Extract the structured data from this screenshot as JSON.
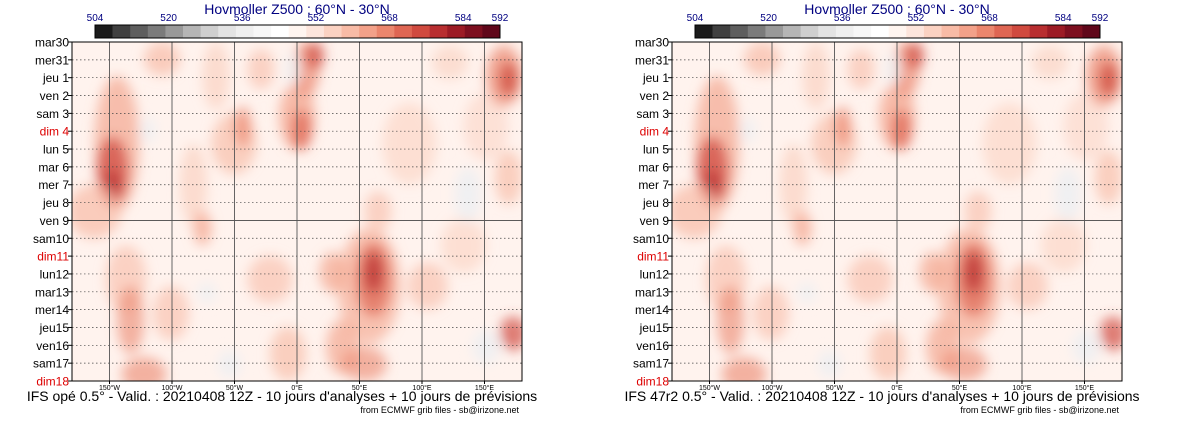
{
  "chart_data": [
    {
      "type": "heatmap",
      "title": "Hovmoller Z500 : 60°N - 30°N",
      "colorbar": {
        "tick_labels": [
          "504",
          "520",
          "536",
          "552",
          "568",
          "584",
          "592"
        ],
        "tick_values": [
          504,
          520,
          536,
          552,
          568,
          584,
          592
        ],
        "range": [
          504,
          592
        ],
        "colors": [
          "#1b1b1b",
          "#404040",
          "#5e5e5e",
          "#7b7b7b",
          "#999999",
          "#b5b5b5",
          "#cfcfcf",
          "#e3e3e3",
          "#efefef",
          "#f7f7f7",
          "#ffffff",
          "#fff5f0",
          "#fde5dc",
          "#fbd2c2",
          "#f8bba6",
          "#f3a189",
          "#eb866d",
          "#df6653",
          "#d04a3f",
          "#b82e30",
          "#9c1b25",
          "#7d0f1f",
          "#60071a"
        ]
      },
      "y_labels": [
        {
          "text": "mar30",
          "weekend": false
        },
        {
          "text": "mer31",
          "weekend": false
        },
        {
          "text": "jeu 1",
          "weekend": false
        },
        {
          "text": "ven 2",
          "weekend": false
        },
        {
          "text": "sam 3",
          "weekend": false
        },
        {
          "text": "dim 4",
          "weekend": true
        },
        {
          "text": "lun 5",
          "weekend": false
        },
        {
          "text": "mar 6",
          "weekend": false
        },
        {
          "text": "mer 7",
          "weekend": false
        },
        {
          "text": "jeu 8",
          "weekend": false
        },
        {
          "text": "ven 9",
          "weekend": false
        },
        {
          "text": "sam10",
          "weekend": false
        },
        {
          "text": "dim11",
          "weekend": true
        },
        {
          "text": "lun12",
          "weekend": false
        },
        {
          "text": "mar13",
          "weekend": false
        },
        {
          "text": "mer14",
          "weekend": false
        },
        {
          "text": "jeu15",
          "weekend": false
        },
        {
          "text": "ven16",
          "weekend": false
        },
        {
          "text": "sam17",
          "weekend": false
        },
        {
          "text": "dim18",
          "weekend": true
        }
      ],
      "x_labels": [
        "150°W",
        "100°W",
        "50°W",
        "0°E",
        "50°E",
        "100°E",
        "150°E"
      ],
      "x_values": [
        -150,
        -100,
        -50,
        0,
        50,
        100,
        150
      ],
      "x_range": [
        -180,
        180
      ],
      "analysis_forecast_split": "ven 9",
      "footer": "IFS opé 0.5° - Valid. : 20210408 12Z - 10 jours d'analyses + 10 jours de prévisions",
      "credit": "from ECMWF grib files - sb@irizone.net"
    },
    {
      "type": "heatmap",
      "title": "Hovmoller Z500 : 60°N - 30°N",
      "colorbar": {
        "tick_labels": [
          "504",
          "520",
          "536",
          "552",
          "568",
          "584",
          "592"
        ],
        "tick_values": [
          504,
          520,
          536,
          552,
          568,
          584,
          592
        ],
        "range": [
          504,
          592
        ],
        "colors": [
          "#1b1b1b",
          "#404040",
          "#5e5e5e",
          "#7b7b7b",
          "#999999",
          "#b5b5b5",
          "#cfcfcf",
          "#e3e3e3",
          "#efefef",
          "#f7f7f7",
          "#ffffff",
          "#fff5f0",
          "#fde5dc",
          "#fbd2c2",
          "#f8bba6",
          "#f3a189",
          "#eb866d",
          "#df6653",
          "#d04a3f",
          "#b82e30",
          "#9c1b25",
          "#7d0f1f",
          "#60071a"
        ]
      },
      "y_labels": [
        {
          "text": "mar30",
          "weekend": false
        },
        {
          "text": "mer31",
          "weekend": false
        },
        {
          "text": "jeu 1",
          "weekend": false
        },
        {
          "text": "ven 2",
          "weekend": false
        },
        {
          "text": "sam 3",
          "weekend": false
        },
        {
          "text": "dim 4",
          "weekend": true
        },
        {
          "text": "lun 5",
          "weekend": false
        },
        {
          "text": "mar 6",
          "weekend": false
        },
        {
          "text": "mer 7",
          "weekend": false
        },
        {
          "text": "jeu 8",
          "weekend": false
        },
        {
          "text": "ven 9",
          "weekend": false
        },
        {
          "text": "sam10",
          "weekend": false
        },
        {
          "text": "dim11",
          "weekend": true
        },
        {
          "text": "lun12",
          "weekend": false
        },
        {
          "text": "mar13",
          "weekend": false
        },
        {
          "text": "mer14",
          "weekend": false
        },
        {
          "text": "jeu15",
          "weekend": false
        },
        {
          "text": "ven16",
          "weekend": false
        },
        {
          "text": "sam17",
          "weekend": false
        },
        {
          "text": "dim18",
          "weekend": true
        }
      ],
      "x_labels": [
        "150°W",
        "100°W",
        "50°W",
        "0°E",
        "50°E",
        "100°E",
        "150°E"
      ],
      "x_values": [
        -150,
        -100,
        -50,
        0,
        50,
        100,
        150
      ],
      "x_range": [
        -180,
        180
      ],
      "analysis_forecast_split": "ven 9",
      "footer": "IFS 47r2 0.5° - Valid. : 20210408 12Z - 10 jours d'analyses + 10 jours de prévisions",
      "credit": "from ECMWF grib files - sb@irizone.net"
    }
  ]
}
